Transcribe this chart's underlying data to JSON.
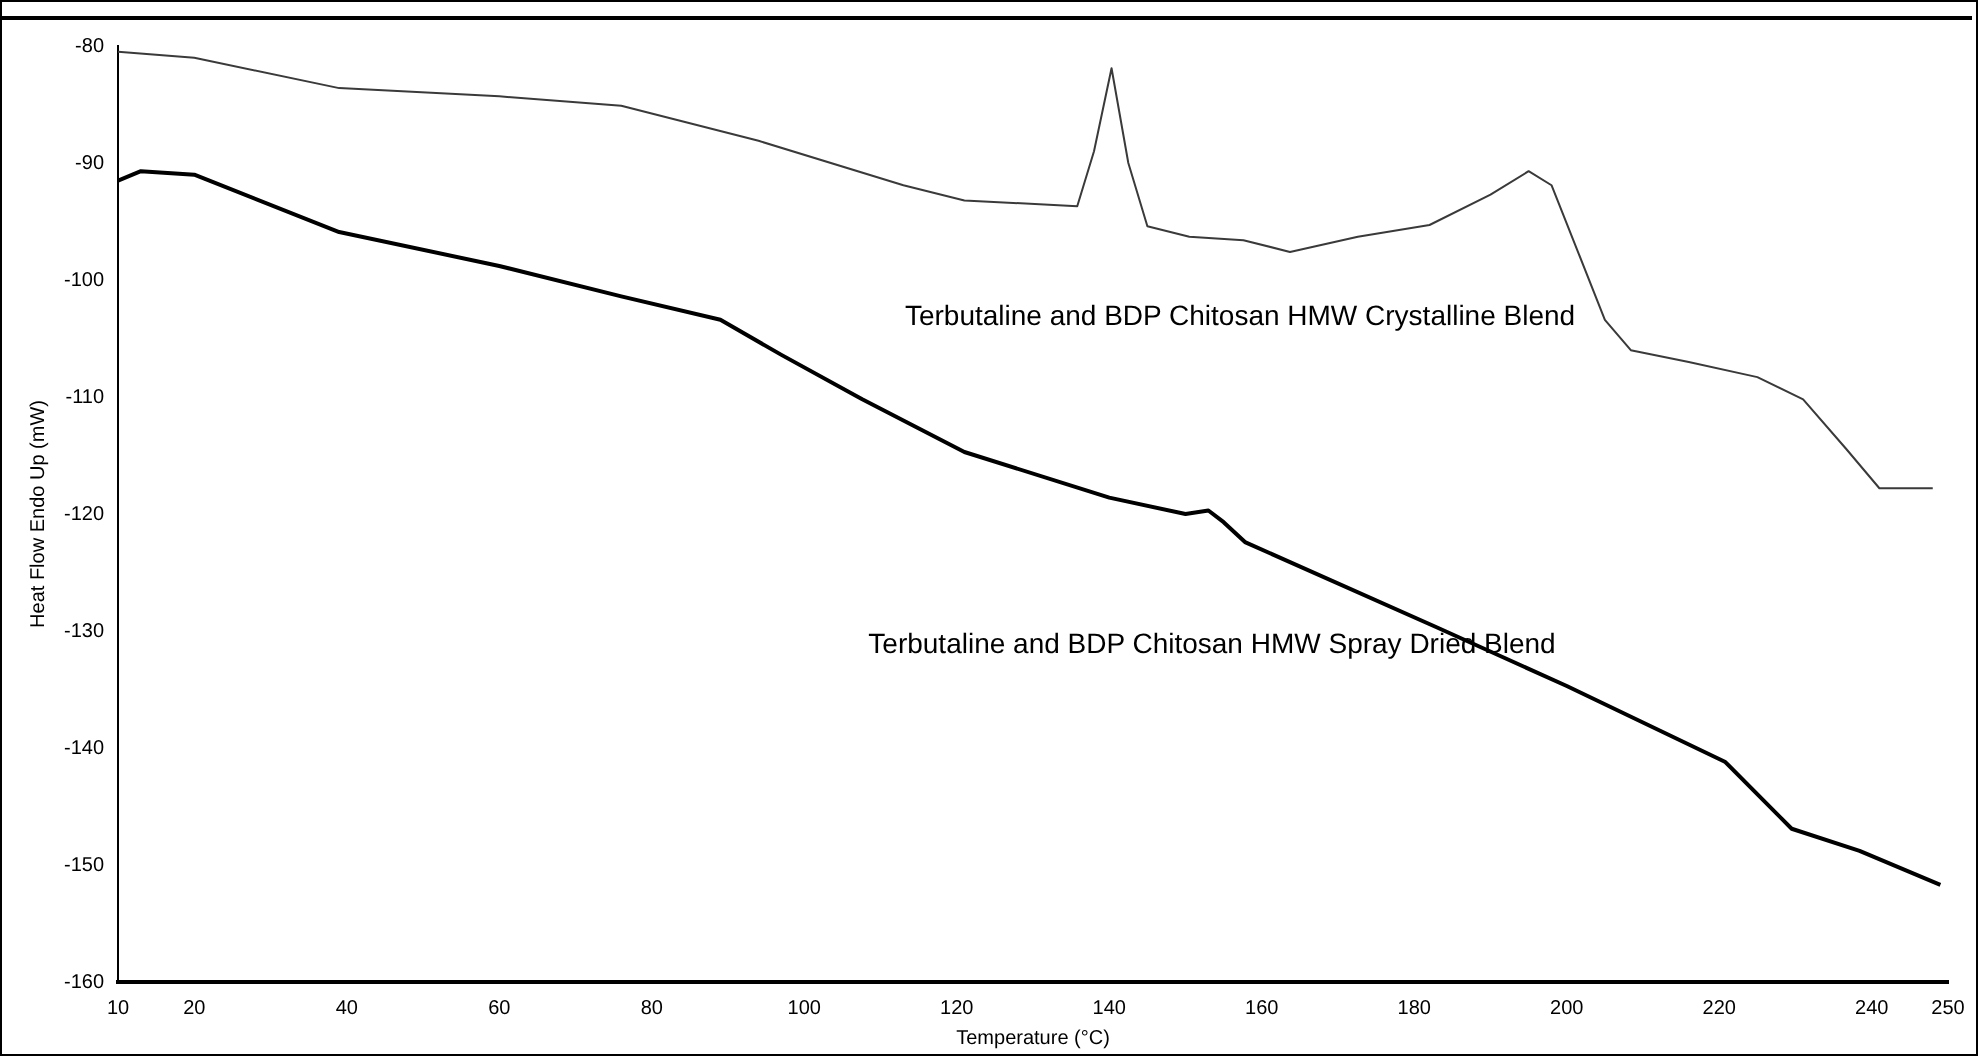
{
  "chart_data": {
    "type": "line",
    "xlabel": "Temperature (°C)",
    "ylabel": "Heat Flow Endo Up (mW)",
    "xlim": [
      10,
      250
    ],
    "xticks": [
      10,
      20,
      40,
      60,
      80,
      100,
      120,
      140,
      160,
      180,
      200,
      220,
      240,
      250
    ],
    "ylim": [
      -160,
      -80
    ],
    "yticks": [
      -160,
      -150,
      -140,
      -130,
      -120,
      -110,
      -100,
      -90,
      -80
    ],
    "grid": false,
    "legend": false,
    "marker": "none",
    "line_style": "solid",
    "series": [
      {
        "name": "Terbutaline and BDP Chitosan HMW Crystalline Blend",
        "color": "#3a3a3a",
        "x": [
          10,
          20,
          39,
          60,
          76,
          94,
          113,
          121,
          135.8,
          138,
          140.3,
          142.5,
          145,
          150.5,
          157.6,
          163.7,
          172.6,
          182,
          190,
          195,
          198,
          201.6,
          205,
          208.4,
          216,
          225,
          231,
          236.6,
          241,
          248
        ],
        "values": [
          -80.5,
          -81,
          -83.6,
          -84.3,
          -85.1,
          -88.1,
          -91.9,
          -93.2,
          -93.7,
          -89,
          -81.9,
          -90,
          -95.4,
          -96.3,
          -96.6,
          -97.6,
          -96.3,
          -95.3,
          -92.7,
          -90.7,
          -91.9,
          -97.8,
          -103.4,
          -106,
          -107,
          -108.3,
          -110.2,
          -114.4,
          -117.8,
          -117.8
        ]
      },
      {
        "name": "Terbutaline and BDP Chitosan HMW Spray Dried Blend",
        "color": "#000000",
        "x": [
          10,
          13,
          20,
          39,
          60,
          76,
          89,
          97,
          107.6,
          121,
          140,
          150,
          153,
          155,
          157.8,
          183,
          200,
          220.8,
          229.5,
          238.4,
          249
        ],
        "values": [
          -91.5,
          -90.7,
          -91,
          -95.9,
          -98.8,
          -101.4,
          -103.4,
          -106.4,
          -110.2,
          -114.7,
          -118.6,
          -120,
          -119.7,
          -120.7,
          -122.4,
          -129.7,
          -134.7,
          -141.2,
          -146.9,
          -148.8,
          -151.7
        ]
      }
    ]
  }
}
